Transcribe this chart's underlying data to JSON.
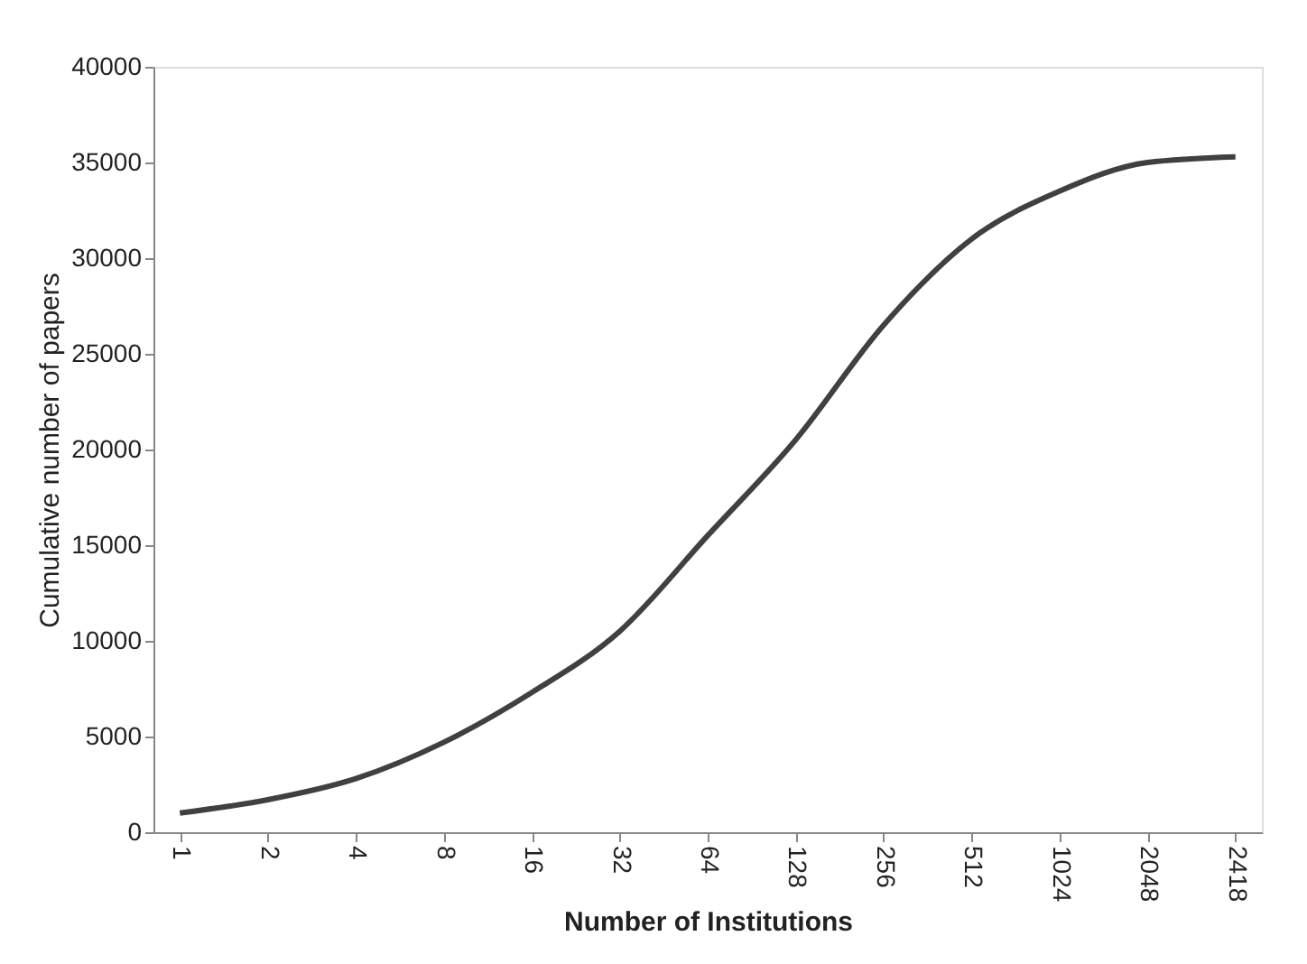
{
  "chart_data": {
    "type": "line",
    "xlabel": "Number of Institutions",
    "ylabel": "Cumulative number of papers",
    "categories": [
      "1",
      "2",
      "4",
      "8",
      "16",
      "32",
      "64",
      "128",
      "256",
      "512",
      "1024",
      "2048",
      "2418"
    ],
    "series": [
      {
        "color": "#404040",
        "values": [
          1000,
          1700,
          2800,
          4700,
          7300,
          10500,
          15500,
          20500,
          26500,
          31000,
          33500,
          35000,
          35300
        ]
      }
    ],
    "ylim": [
      0,
      40000
    ],
    "yticks": [
      0,
      5000,
      10000,
      15000,
      20000,
      25000,
      30000,
      35000,
      40000
    ],
    "grid": false,
    "marker": "none",
    "line_style": "solid"
  }
}
